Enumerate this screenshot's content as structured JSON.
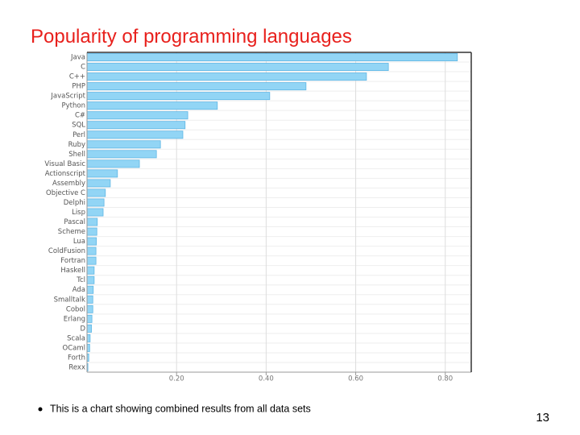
{
  "slide": {
    "bullet": "This is a chart showing combined results from all data sets",
    "page_number": "13"
  },
  "chart_data": {
    "type": "hbar",
    "title": "Popularity of programming languages",
    "categories": [
      "Java",
      "C",
      "C++",
      "PHP",
      "JavaScript",
      "Python",
      "C#",
      "SQL",
      "Perl",
      "Ruby",
      "Shell",
      "Visual Basic",
      "Actionscript",
      "Assembly",
      "Objective C",
      "Delphi",
      "Lisp",
      "Pascal",
      "Scheme",
      "Lua",
      "ColdFusion",
      "Fortran",
      "Haskell",
      "Tcl",
      "Ada",
      "Smalltalk",
      "Cobol",
      "Erlang",
      "D",
      "Scala",
      "OCaml",
      "Forth",
      "Rexx"
    ],
    "values": [
      0.827,
      0.673,
      0.624,
      0.489,
      0.408,
      0.291,
      0.225,
      0.219,
      0.214,
      0.164,
      0.155,
      0.117,
      0.068,
      0.052,
      0.041,
      0.038,
      0.036,
      0.023,
      0.022,
      0.021,
      0.02,
      0.02,
      0.016,
      0.016,
      0.014,
      0.013,
      0.013,
      0.011,
      0.01,
      0.007,
      0.006,
      0.004,
      0.002
    ],
    "color": "#92d5f5",
    "xlim": [
      0,
      0.858
    ],
    "xticks": [
      {
        "value": 0.2,
        "label": "0.20"
      },
      {
        "value": 0.4,
        "label": "0.40"
      },
      {
        "value": 0.6,
        "label": "0.60"
      },
      {
        "value": 0.8,
        "label": "0.80"
      }
    ],
    "grid": true
  }
}
